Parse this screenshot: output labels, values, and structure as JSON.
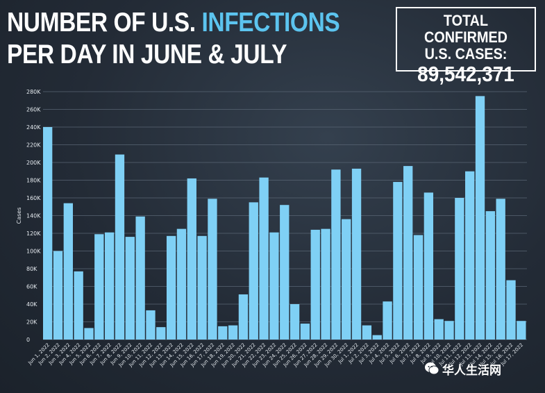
{
  "headline": {
    "line1_part1": "NUMBER OF U.S. ",
    "line1_highlight": "INFECTIONS",
    "line2": "PER DAY IN JUNE & JULY"
  },
  "total_box": {
    "label_line1": "TOTAL CONFIRMED",
    "label_line2": "U.S. CASES:",
    "value": "89,542,371"
  },
  "watermark": "华人生活网",
  "colors": {
    "bar": "#7fd0f5",
    "highlight": "#5cc4ef",
    "grid": "#5a6675",
    "tick_text": "#e6ebf0"
  },
  "chart_data": {
    "type": "bar",
    "title": "NUMBER OF U.S. INFECTIONS PER DAY IN JUNE & JULY",
    "xlabel": "",
    "ylabel": "Cases",
    "ylim": [
      0,
      280000
    ],
    "yticks": [
      0,
      20000,
      40000,
      60000,
      80000,
      100000,
      120000,
      140000,
      160000,
      180000,
      200000,
      220000,
      240000,
      260000,
      280000
    ],
    "ytick_labels": [
      "0",
      "20K",
      "40K",
      "60K",
      "80K",
      "100K",
      "120K",
      "140K",
      "160K",
      "180K",
      "200K",
      "220K",
      "240K",
      "260K",
      "280K"
    ],
    "grid": true,
    "categories": [
      "Jun 1, 2022",
      "Jun 2, 2022",
      "Jun 3, 2022",
      "Jun 4, 2022",
      "Jun 5, 2022",
      "Jun 6, 2022",
      "Jun 7, 2022",
      "Jun 8, 2022",
      "Jun 9, 2022",
      "Jun 10, 2022",
      "Jun 11, 2022",
      "Jun 12, 2022",
      "Jun 13, 2022",
      "Jun 14, 2022",
      "Jun 15, 2022",
      "Jun 16, 2022",
      "Jun 17, 2022",
      "Jun 18, 2022",
      "Jun 19, 2022",
      "Jun 20, 2022",
      "Jun 21, 2022",
      "Jun 22, 2022",
      "Jun 23, 2022",
      "Jun 24, 2022",
      "Jun 25, 2022",
      "Jun 26, 2022",
      "Jun 27, 2022",
      "Jun 28, 2022",
      "Jun 29, 2022",
      "Jun 30, 2022",
      "Jul 1, 2022",
      "Jul 2, 2022",
      "Jul 3, 2022",
      "Jul 4, 2022",
      "Jul 5, 2022",
      "Jul 6, 2022",
      "Jul 7, 2022",
      "Jul 8, 2022",
      "Jul 9, 2022",
      "Jul 10, 2022",
      "Jul 11, 2022",
      "Jul 12, 2022",
      "Jul 13, 2022",
      "Jul 14, 2022",
      "Jul 15, 2022",
      "Jul 16, 2022",
      "Jul 17, 2022"
    ],
    "values": [
      240000,
      100000,
      154000,
      77000,
      13000,
      119000,
      121000,
      209000,
      116000,
      139000,
      33000,
      14000,
      117000,
      125000,
      182000,
      117000,
      159000,
      15000,
      16000,
      51000,
      155000,
      183000,
      121000,
      152000,
      40000,
      18000,
      124000,
      125000,
      192000,
      136000,
      193000,
      16000,
      5000,
      43000,
      178000,
      196000,
      118000,
      166000,
      23000,
      21000,
      160000,
      190000,
      275000,
      145000,
      159000,
      67000,
      21000
    ]
  }
}
